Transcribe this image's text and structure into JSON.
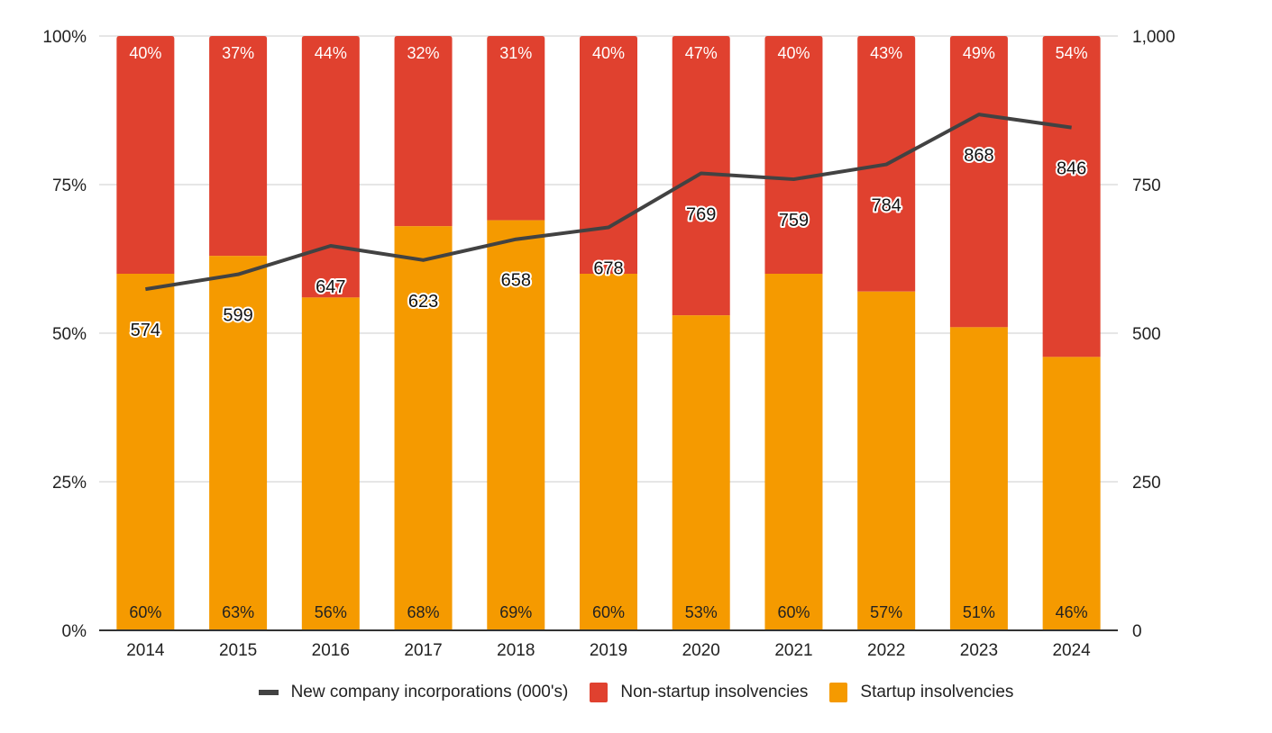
{
  "chart_data": {
    "type": "bar",
    "subtype": "stacked-100-percent-with-line",
    "categories": [
      "2014",
      "2015",
      "2016",
      "2017",
      "2018",
      "2019",
      "2020",
      "2021",
      "2022",
      "2023",
      "2024"
    ],
    "series": [
      {
        "name": "Startup insolvencies",
        "kind": "bar",
        "axis": "left",
        "color": "#F59A00",
        "values": [
          60,
          63,
          56,
          68,
          69,
          60,
          53,
          60,
          57,
          51,
          46
        ],
        "labels": [
          "60%",
          "63%",
          "56%",
          "68%",
          "69%",
          "60%",
          "53%",
          "60%",
          "57%",
          "51%",
          "46%"
        ]
      },
      {
        "name": "Non-startup insolvencies",
        "kind": "bar",
        "axis": "left",
        "color": "#E0412F",
        "values": [
          40,
          37,
          44,
          32,
          31,
          40,
          47,
          40,
          43,
          49,
          54
        ],
        "labels": [
          "40%",
          "37%",
          "44%",
          "32%",
          "31%",
          "40%",
          "47%",
          "40%",
          "43%",
          "49%",
          "54%"
        ]
      },
      {
        "name": "New company incorporations (000's)",
        "kind": "line",
        "axis": "right",
        "color": "#424242",
        "values": [
          574,
          599,
          647,
          623,
          658,
          678,
          769,
          759,
          784,
          868,
          846
        ],
        "labels": [
          "574",
          "599",
          "647",
          "623",
          "658",
          "678",
          "769",
          "759",
          "784",
          "868",
          "846"
        ]
      }
    ],
    "left_axis": {
      "ylim": [
        0,
        100
      ],
      "ticks": [
        "0%",
        "25%",
        "50%",
        "75%",
        "100%"
      ],
      "tick_values": [
        0,
        25,
        50,
        75,
        100
      ]
    },
    "right_axis": {
      "ylim": [
        0,
        1000
      ],
      "ticks": [
        "0",
        "250",
        "500",
        "750",
        "1,000"
      ],
      "tick_values": [
        0,
        250,
        500,
        750,
        1000
      ]
    },
    "title": "",
    "xlabel": "",
    "ylabel": "",
    "grid": true,
    "legend_position": "bottom",
    "legend": [
      {
        "label": "New company incorporations (000's)",
        "marker": "line",
        "color": "#424242"
      },
      {
        "label": "Non-startup insolvencies",
        "marker": "box",
        "color": "#E0412F"
      },
      {
        "label": "Startup insolvencies",
        "marker": "box",
        "color": "#F59A00"
      }
    ]
  }
}
